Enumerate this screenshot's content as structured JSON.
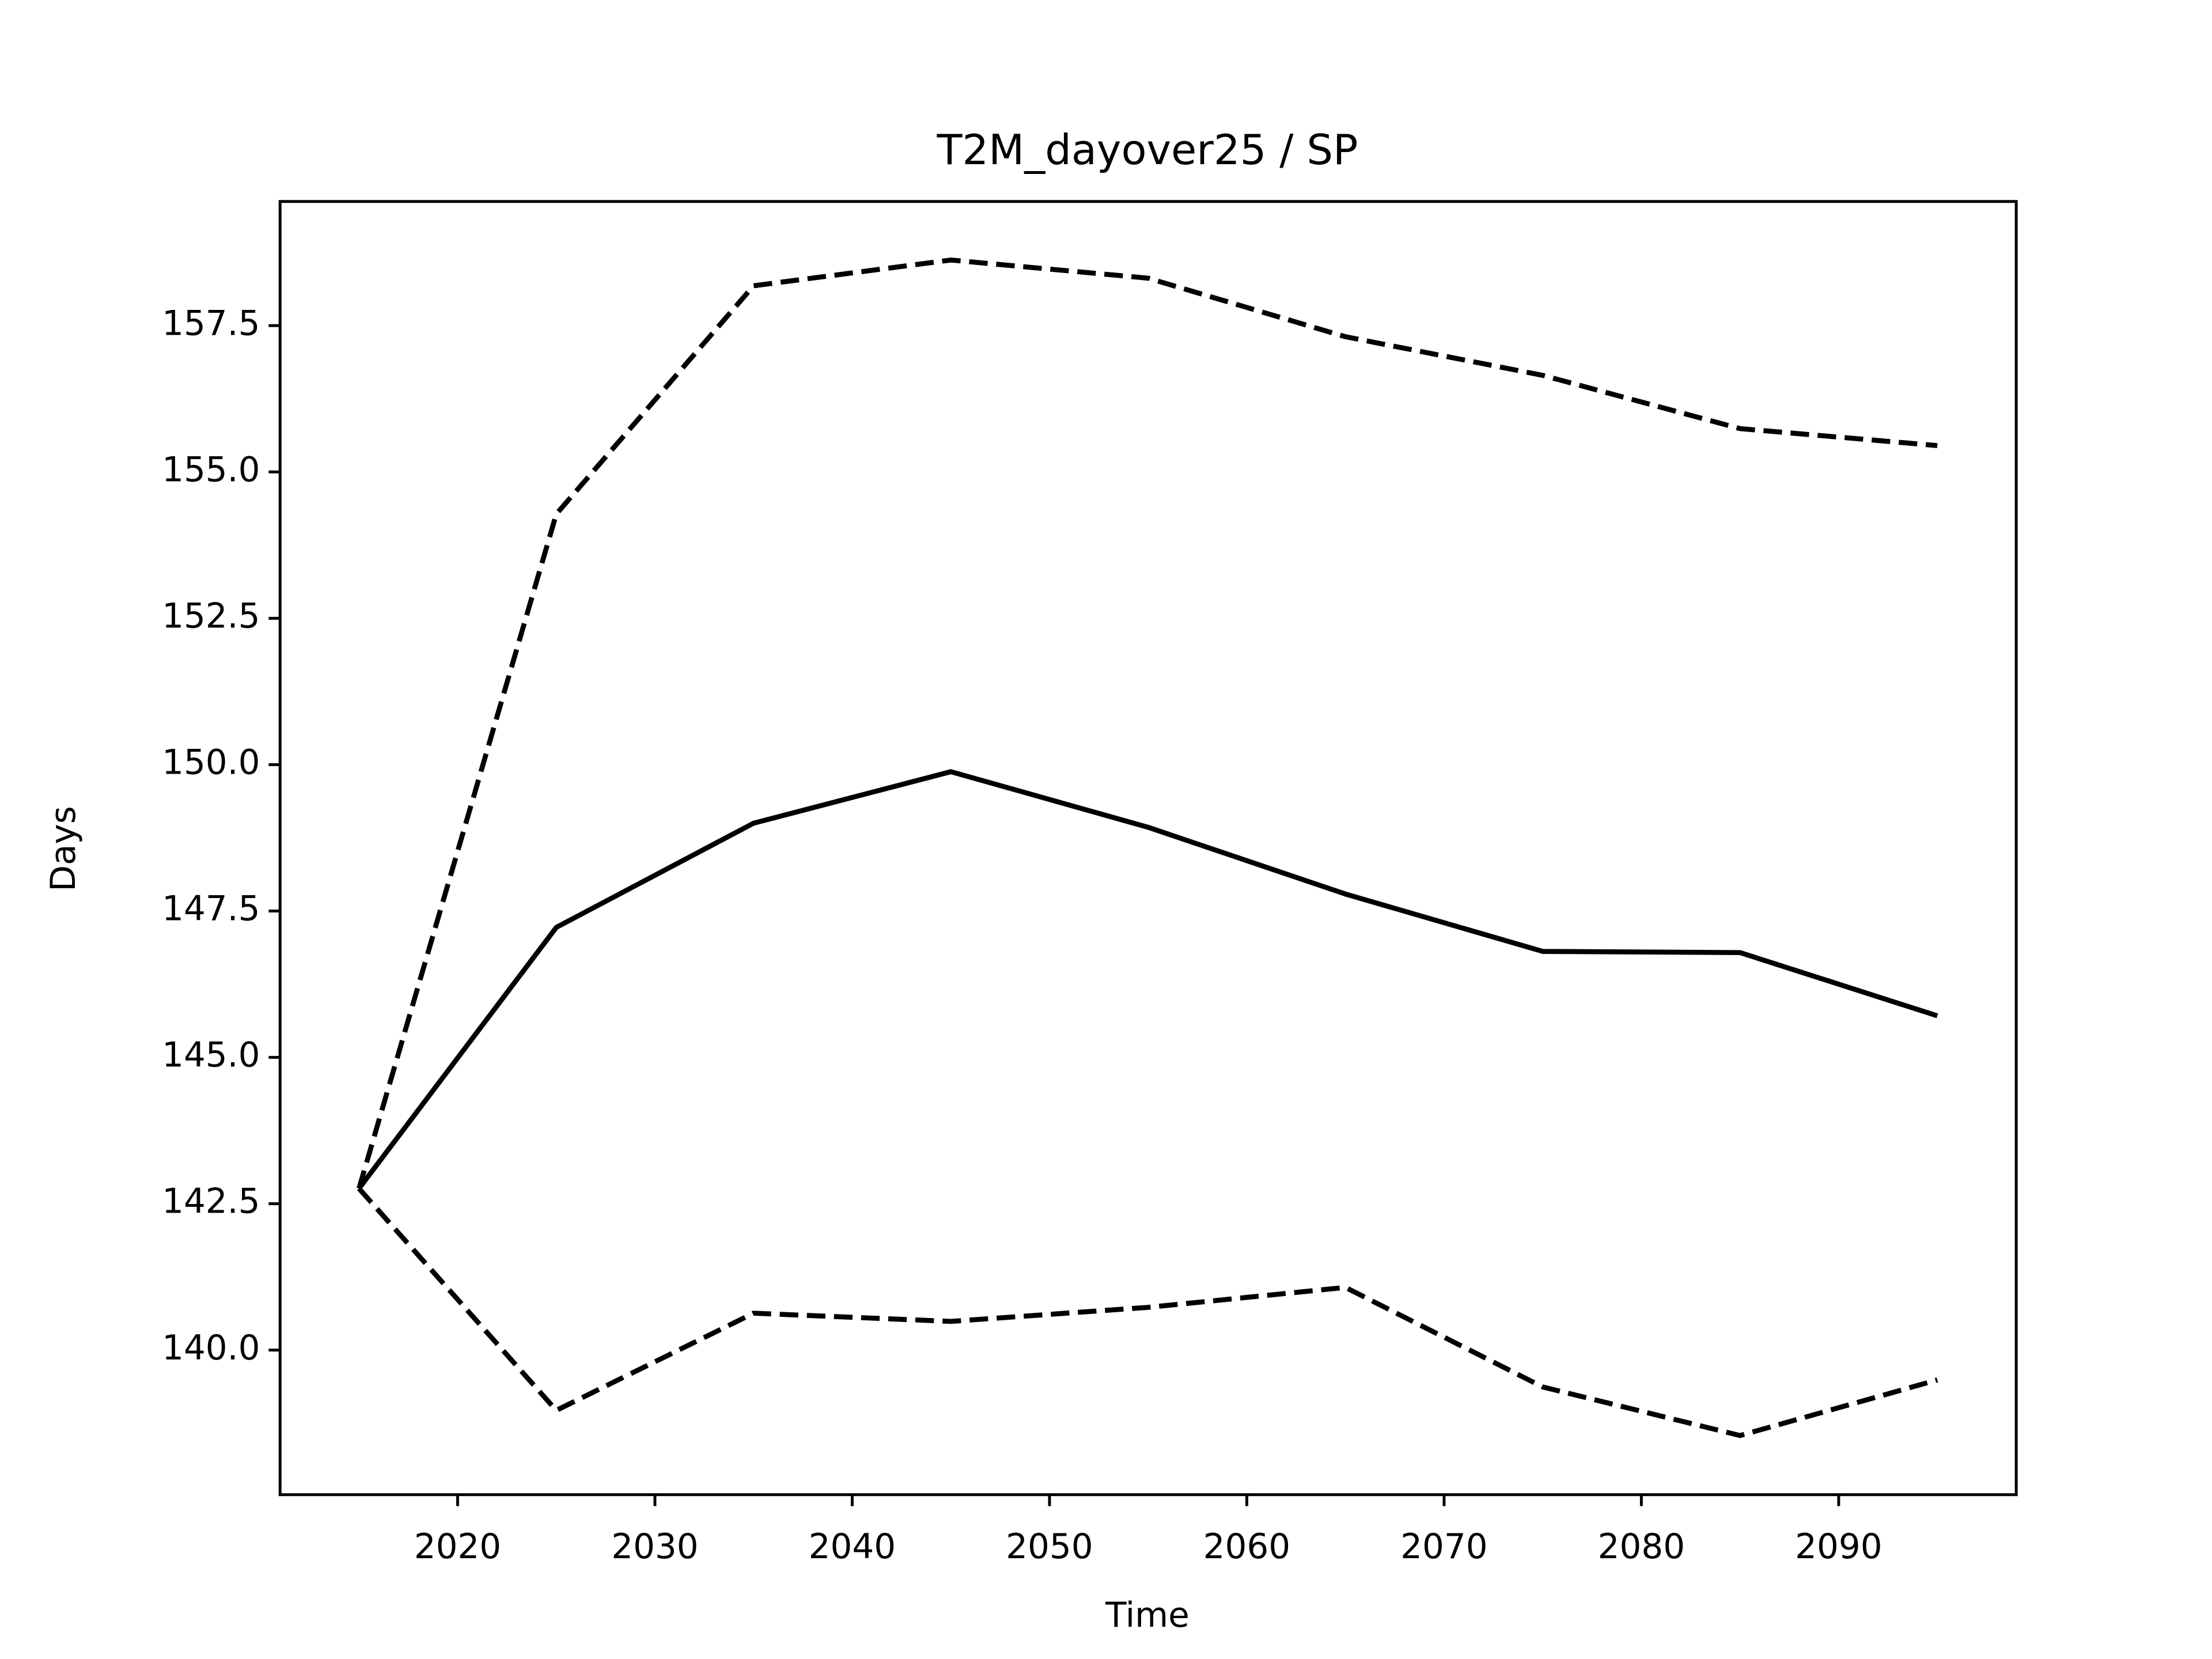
{
  "chart_data": {
    "type": "line",
    "title": "T2M_dayover25 / SP",
    "x_label": "Time",
    "y_label": "Days",
    "x": [
      2015,
      2025,
      2035,
      2045,
      2055,
      2065,
      2075,
      2085,
      2095
    ],
    "series": [
      {
        "color": "#000000",
        "dash": "solid",
        "values": [
          142.76,
          147.22,
          149.0,
          149.88,
          148.93,
          147.79,
          146.81,
          146.79,
          145.71
        ]
      },
      {
        "color": "#000000",
        "dash": "dashed",
        "values": [
          142.76,
          154.28,
          158.18,
          158.62,
          158.31,
          157.31,
          156.65,
          155.74,
          155.45
        ]
      },
      {
        "color": "#000000",
        "dash": "dashed",
        "values": [
          142.76,
          138.97,
          140.63,
          140.49,
          140.73,
          141.07,
          139.37,
          138.54,
          139.49
        ]
      }
    ],
    "xlim": [
      2011,
      2099
    ],
    "xticks": [
      2020,
      2030,
      2040,
      2050,
      2060,
      2070,
      2080,
      2090
    ],
    "ylim": [
      137.53,
      159.62
    ],
    "yticks": [
      {
        "value": 140,
        "label": "140.0"
      },
      142.5,
      {
        "value": 145,
        "label": "145.0"
      },
      147.5,
      {
        "value": 150,
        "label": "150.0"
      },
      152.5,
      {
        "value": 155,
        "label": "155.0"
      },
      157.5
    ],
    "grid": false
  }
}
